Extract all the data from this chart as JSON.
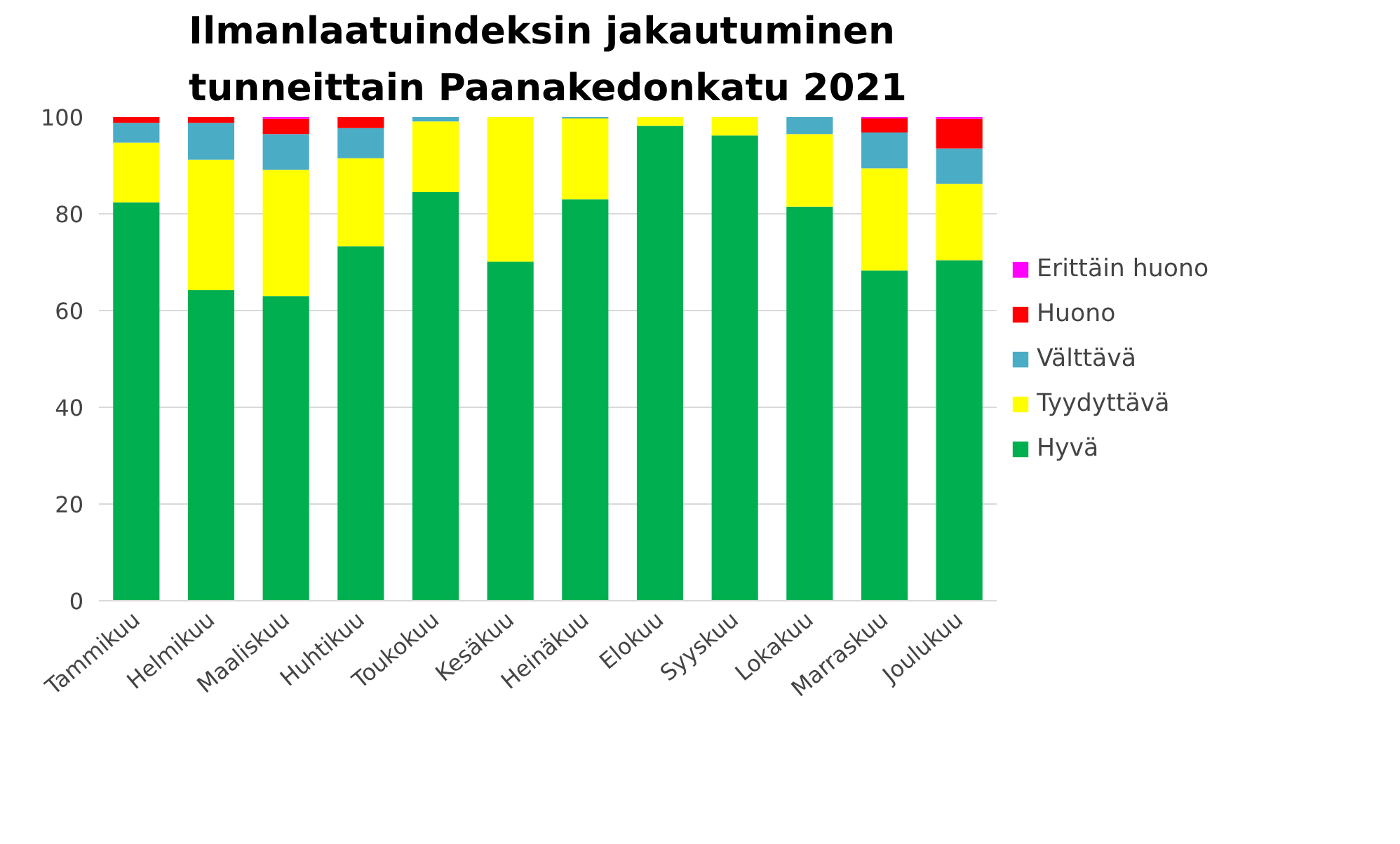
{
  "chart_data": {
    "type": "bar",
    "stacked": true,
    "title": "Ilmanlaatuindeksin jakautuminen\ntunneittain Paanakedonkatu 2021",
    "categories": [
      "Tammikuu",
      "Helmikuu",
      "Maaliskuu",
      "Huhtikuu",
      "Toukokuu",
      "Kesäkuu",
      "Heinäkuu",
      "Elokuu",
      "Syyskuu",
      "Lokakuu",
      "Marraskuu",
      "Joulukuu"
    ],
    "series": [
      {
        "name": "Hyvä",
        "color": "#00b050",
        "values": [
          82.4,
          64.2,
          63,
          73.3,
          84.5,
          70.1,
          83,
          98.2,
          96.2,
          81.5,
          68.3,
          70.4
        ]
      },
      {
        "name": "Tyydyttävä",
        "color": "#ffff00",
        "values": [
          12.3,
          27,
          26.1,
          18.2,
          14.6,
          29.9,
          16.7,
          1.8,
          3.8,
          15,
          21.1,
          15.8
        ]
      },
      {
        "name": "Välttävä",
        "color": "#4bacc6",
        "values": [
          4.1,
          7.6,
          7.4,
          6.2,
          0.9,
          0,
          0.3,
          0,
          0,
          3.5,
          7.4,
          7.3
        ]
      },
      {
        "name": "Huono",
        "color": "#ff0000",
        "values": [
          1.2,
          1.2,
          3.1,
          2.3,
          0,
          0,
          0,
          0,
          0,
          0,
          2.9,
          6.1
        ]
      },
      {
        "name": "Erittäin huono",
        "color": "#ff00ff",
        "values": [
          0,
          0,
          0.4,
          0,
          0,
          0,
          0,
          0,
          0,
          0,
          0.3,
          0.4
        ]
      }
    ],
    "ylim": [
      0,
      100
    ],
    "yticks": [
      0,
      20,
      40,
      60,
      80,
      100
    ],
    "grid": "y",
    "legend": "right"
  }
}
